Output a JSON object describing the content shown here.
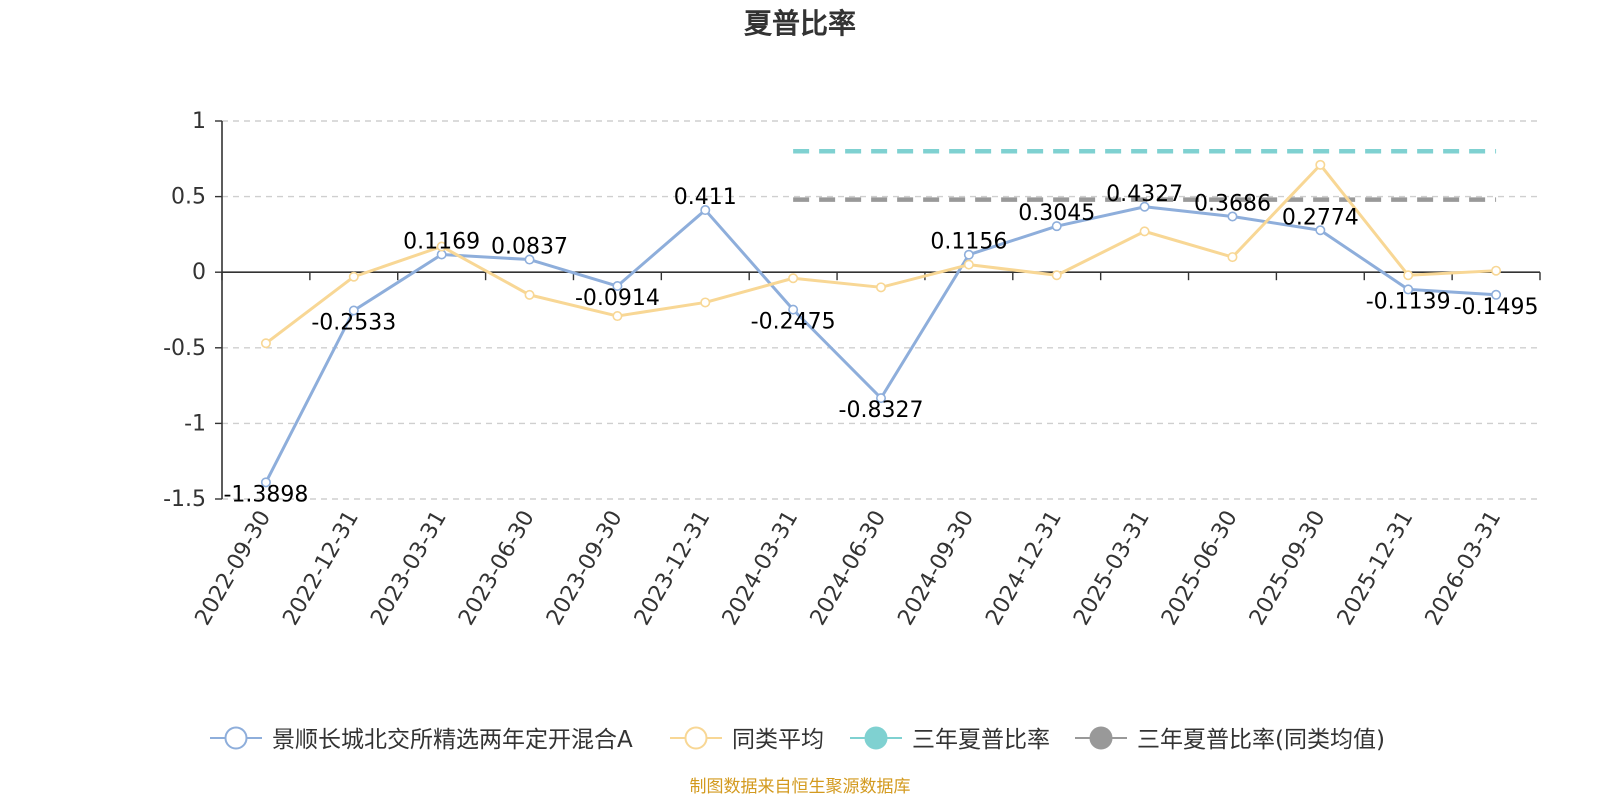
{
  "chart_data": {
    "type": "line",
    "title": "夏普比率",
    "xlabel": "",
    "ylabel": "",
    "ylim": [
      -1.5,
      1
    ],
    "yticks": [
      1,
      0.5,
      0,
      -0.5,
      -1,
      -1.5
    ],
    "ytick_labels": [
      "1",
      "0.5",
      "0",
      "-0.5",
      "-1",
      "-1.5"
    ],
    "categories": [
      "2022-09-30",
      "2022-12-31",
      "2023-03-31",
      "2023-06-30",
      "2023-09-30",
      "2023-12-31",
      "2024-03-31",
      "2024-06-30",
      "2024-09-30",
      "2024-12-31",
      "2025-03-31",
      "2025-06-30",
      "2025-09-30",
      "2025-12-31",
      "2026-03-31"
    ],
    "series": [
      {
        "name": "景顺长城北交所精选两年定开混合A",
        "color": "#8eaedb",
        "values": [
          -1.3898,
          -0.2533,
          0.1169,
          0.0837,
          -0.0914,
          0.411,
          -0.2475,
          -0.8327,
          0.1156,
          0.3045,
          0.4327,
          0.3686,
          0.2774,
          -0.1139,
          -0.1495
        ],
        "labels": [
          "-1.3898",
          "-0.2533",
          "0.1169",
          "0.0837",
          "-0.0914",
          "0.411",
          "-0.2475",
          "-0.8327",
          "0.1156",
          "0.3045",
          "0.4327",
          "0.3686",
          "0.2774",
          "-0.1139",
          "-0.1495"
        ]
      },
      {
        "name": "同类平均",
        "color": "#f8d795",
        "values": [
          -0.47,
          -0.03,
          0.17,
          -0.15,
          -0.29,
          -0.2,
          -0.04,
          -0.1,
          0.05,
          -0.02,
          0.27,
          0.1,
          0.71,
          -0.02,
          0.01
        ]
      }
    ],
    "reference_lines": [
      {
        "name": "三年夏普比率",
        "color": "#7fd1d1",
        "value": 0.8,
        "x_start_category": "2024-03-31",
        "x_end_category": "2026-03-31"
      },
      {
        "name": "三年夏普比率(同类均值)",
        "color": "#999999",
        "value": 0.48,
        "x_start_category": "2024-03-31",
        "x_end_category": "2026-03-31"
      }
    ],
    "legend": [
      "景顺长城北交所精选两年定开混合A",
      "同类平均",
      "三年夏普比率",
      "三年夏普比率(同类均值)"
    ],
    "grid": true,
    "legend_position": "bottom"
  },
  "footer": {
    "source": "制图数据来自恒生聚源数据库"
  }
}
